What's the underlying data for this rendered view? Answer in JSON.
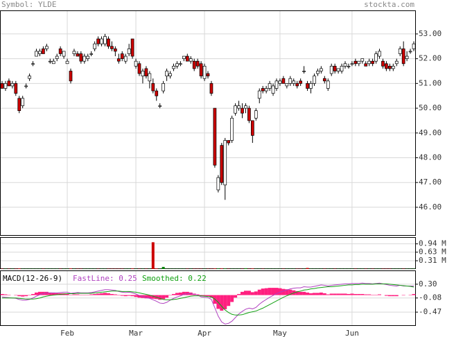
{
  "chart_data": [
    {
      "type": "candlestick",
      "title": "Symbol: YLDE",
      "source": "stockta.com",
      "categories": [
        null,
        null,
        null,
        null,
        null,
        null,
        null,
        null,
        null,
        null,
        null,
        null,
        null,
        null,
        null,
        null,
        null,
        null,
        null,
        "Feb",
        null,
        null,
        null,
        null,
        null,
        null,
        null,
        null,
        null,
        null,
        null,
        null,
        null,
        null,
        null,
        null,
        null,
        null,
        null,
        "Mar",
        null,
        null,
        null,
        null,
        null,
        null,
        null,
        null,
        null,
        null,
        null,
        null,
        null,
        null,
        null,
        null,
        null,
        null,
        null,
        "Apr",
        null,
        null,
        null,
        null,
        null,
        null,
        null,
        null,
        null,
        null,
        null,
        null,
        null,
        null,
        null,
        null,
        null,
        null,
        null,
        null,
        null,
        "May",
        null,
        null,
        null,
        null,
        null,
        null,
        null,
        null,
        null,
        null,
        null,
        null,
        null,
        null,
        null,
        null,
        null,
        null,
        null,
        null,
        "Jun",
        null,
        null,
        null,
        null,
        null,
        null,
        null,
        null,
        null,
        null,
        null,
        null,
        null,
        null,
        null,
        null,
        null,
        null
      ],
      "open": [
        51.0,
        50.8,
        51.1,
        50.9,
        51.0,
        50.4,
        50.1,
        50.9,
        51.2,
        51.8,
        52.1,
        52.2,
        52.4,
        52.4,
        51.9,
        51.8,
        52.0,
        52.4,
        52.1,
        51.8,
        51.5,
        52.2,
        52.2,
        52.2,
        51.9,
        52.0,
        52.2,
        52.4,
        52.8,
        52.6,
        52.6,
        52.8,
        52.5,
        52.4,
        52.0,
        52.2,
        51.9,
        52.2,
        52.8,
        51.7,
        51.8,
        51.3,
        51.6,
        51.1,
        51.0,
        50.7,
        50.1,
        50.7,
        51.3,
        51.3,
        51.6,
        51.7,
        51.8,
        52.0,
        52.1,
        51.9,
        51.9,
        51.9,
        51.8,
        51.2,
        51.4,
        51.0,
        50.0,
        46.7,
        48.5,
        46.9,
        48.7,
        48.7,
        49.8,
        50.0,
        50.0,
        50.0,
        50.0,
        49.5,
        49.6,
        50.4,
        50.8,
        50.7,
        50.8,
        50.6,
        50.8,
        51.0,
        51.2,
        50.9,
        51.0,
        51.0,
        51.0,
        51.1,
        51.5,
        51.0,
        50.8,
        51.0,
        51.4,
        51.5,
        51.2,
        50.8,
        51.4,
        51.7,
        51.5,
        51.5,
        51.7,
        51.7,
        51.8,
        51.9,
        51.8,
        51.9,
        51.8,
        51.8,
        51.9,
        51.9,
        52.1,
        51.9,
        51.8,
        51.7,
        51.6,
        51.8,
        52.2,
        52.4,
        52.0,
        52.3,
        52.4
      ],
      "high": [
        51.1,
        51.1,
        51.2,
        51.1,
        51.1,
        50.5,
        50.5,
        51.0,
        51.4,
        51.9,
        52.4,
        52.4,
        52.5,
        52.6,
        52.0,
        52.0,
        52.2,
        52.5,
        52.3,
        52.0,
        51.6,
        52.4,
        52.3,
        52.3,
        52.2,
        52.2,
        52.3,
        52.7,
        52.9,
        52.9,
        53.0,
        52.9,
        52.7,
        52.5,
        52.2,
        52.3,
        52.2,
        52.6,
        52.8,
        52.0,
        51.9,
        51.6,
        51.7,
        51.5,
        51.2,
        50.8,
        50.2,
        51.1,
        51.6,
        51.5,
        51.8,
        51.9,
        51.9,
        52.1,
        52.2,
        52.1,
        52.0,
        52.0,
        51.9,
        51.8,
        51.5,
        51.1,
        50.0,
        47.3,
        48.6,
        48.8,
        48.7,
        49.7,
        50.2,
        50.3,
        50.2,
        50.2,
        50.1,
        49.5,
        50.0,
        50.8,
        50.9,
        50.9,
        51.1,
        51.0,
        51.2,
        51.2,
        51.3,
        51.0,
        51.3,
        51.2,
        51.1,
        51.2,
        51.7,
        51.1,
        51.1,
        51.4,
        51.6,
        51.7,
        51.3,
        51.2,
        51.8,
        51.8,
        51.6,
        51.8,
        51.9,
        51.8,
        51.9,
        52.0,
        51.9,
        52.0,
        51.9,
        52.0,
        52.0,
        52.3,
        52.4,
        52.0,
        51.9,
        51.8,
        51.8,
        52.0,
        52.5,
        52.7,
        52.3,
        52.4,
        52.7
      ],
      "low": [
        50.8,
        50.7,
        50.9,
        50.8,
        50.5,
        49.8,
        50.0,
        50.8,
        51.1,
        51.7,
        52.1,
        52.1,
        52.2,
        52.3,
        51.8,
        51.8,
        51.9,
        52.1,
        52.0,
        51.8,
        51.0,
        52.1,
        52.1,
        51.8,
        51.8,
        51.9,
        52.1,
        52.3,
        52.5,
        52.5,
        52.5,
        52.4,
        52.3,
        52.1,
        51.8,
        51.9,
        51.8,
        52.1,
        52.0,
        51.6,
        51.3,
        51.0,
        51.2,
        50.8,
        50.6,
        50.3,
        50.0,
        50.6,
        51.1,
        51.2,
        51.5,
        51.6,
        51.7,
        51.9,
        51.9,
        51.8,
        51.5,
        51.6,
        51.2,
        51.1,
        51.2,
        50.5,
        47.6,
        46.6,
        46.9,
        46.3,
        48.5,
        48.6,
        49.7,
        49.9,
        49.6,
        49.8,
        49.4,
        48.6,
        49.5,
        50.2,
        50.6,
        50.6,
        50.7,
        50.5,
        50.7,
        50.9,
        51.0,
        50.8,
        50.9,
        50.9,
        50.8,
        50.9,
        51.4,
        50.7,
        50.6,
        50.9,
        51.3,
        51.4,
        51.0,
        50.7,
        51.3,
        51.4,
        51.4,
        51.4,
        51.6,
        51.6,
        51.7,
        51.7,
        51.7,
        51.8,
        51.7,
        51.7,
        51.7,
        51.8,
        52.0,
        51.6,
        51.5,
        51.5,
        51.5,
        51.7,
        52.1,
        51.7,
        51.9,
        52.2,
        52.3
      ],
      "close": [
        50.8,
        51.0,
        50.9,
        51.0,
        50.6,
        49.9,
        50.4,
        50.9,
        51.3,
        51.8,
        52.3,
        52.3,
        52.2,
        52.5,
        51.9,
        51.9,
        52.1,
        52.2,
        52.3,
        51.9,
        51.1,
        52.3,
        52.1,
        51.9,
        52.1,
        52.1,
        52.2,
        52.6,
        52.6,
        52.8,
        52.9,
        52.5,
        52.4,
        52.3,
        51.9,
        52.0,
        52.1,
        52.4,
        52.1,
        51.9,
        51.4,
        51.5,
        51.3,
        51.4,
        50.7,
        50.5,
        50.1,
        51.0,
        51.5,
        51.4,
        51.7,
        51.8,
        51.8,
        52.1,
        51.9,
        52.0,
        51.6,
        51.7,
        51.3,
        51.7,
        51.3,
        50.6,
        47.7,
        47.2,
        47.0,
        48.7,
        48.6,
        49.6,
        50.1,
        50.1,
        49.8,
        50.1,
        49.5,
        48.9,
        49.9,
        50.7,
        50.7,
        50.8,
        51.0,
        50.9,
        51.1,
        51.1,
        51.0,
        51.0,
        51.2,
        51.1,
        50.9,
        51.0,
        51.5,
        50.8,
        51.0,
        51.3,
        51.5,
        51.6,
        51.1,
        51.1,
        51.7,
        51.5,
        51.6,
        51.7,
        51.8,
        51.7,
        51.8,
        51.8,
        51.9,
        52.0,
        51.7,
        51.9,
        51.8,
        52.2,
        52.3,
        51.7,
        51.6,
        51.6,
        51.7,
        51.9,
        52.4,
        51.8,
        52.1,
        52.3,
        52.6
      ],
      "up_color": "#ffffff",
      "down_color": "#cc0000",
      "ylim": [
        44.85,
        53.95
      ],
      "yticks": [
        {
          "value": 46,
          "label": "46.00"
        },
        {
          "value": 47,
          "label": "47.00"
        },
        {
          "value": 48,
          "label": "48.00"
        },
        {
          "value": 49,
          "label": "49.00"
        },
        {
          "value": 50,
          "label": "50.00"
        },
        {
          "value": 51,
          "label": "51.00"
        },
        {
          "value": 52,
          "label": "52.00"
        },
        {
          "value": 53,
          "label": "53.00"
        }
      ],
      "grid": true
    },
    {
      "type": "volume",
      "values": [
        0.01,
        0.01,
        0.01,
        0.01,
        0.01,
        0.02,
        0.01,
        0.01,
        0.01,
        0.01,
        0.01,
        0.01,
        0.01,
        0.01,
        0.01,
        0.01,
        0.01,
        0.01,
        0.01,
        0.01,
        0.02,
        0.01,
        0.01,
        0.01,
        0.01,
        0.01,
        0.01,
        0.01,
        0.01,
        0.01,
        0.01,
        0.01,
        0.01,
        0.01,
        0.01,
        0.01,
        0.01,
        0.01,
        0.02,
        0.01,
        0.01,
        0.01,
        0.01,
        0.01,
        1.0,
        0.02,
        0.01,
        0.08,
        0.01,
        0.01,
        0.01,
        0.01,
        0.01,
        0.01,
        0.01,
        0.01,
        0.01,
        0.01,
        0.01,
        0.01,
        0.01,
        0.01,
        0.02,
        0.02,
        0.02,
        0.02,
        0.01,
        0.01,
        0.01,
        0.01,
        0.01,
        0.03,
        0.01,
        0.02,
        0.01,
        0.01,
        0.01,
        0.01,
        0.01,
        0.01,
        0.01,
        0.01,
        0.01,
        0.01,
        0.01,
        0.01,
        0.01,
        0.01,
        0.01,
        0.04,
        0.01,
        0.01,
        0.01,
        0.01,
        0.01,
        0.01,
        0.01,
        0.01,
        0.01,
        0.01,
        0.01,
        0.01,
        0.01,
        0.01,
        0.01,
        0.01,
        0.01,
        0.01,
        0.01,
        0.01,
        0.01,
        0.01,
        0.01,
        0.01,
        0.01,
        0.01,
        0.01,
        0.01,
        0.01,
        0.01,
        0.01
      ],
      "up_color": "#008000",
      "down_color": "#cc0000",
      "ylim": [
        0,
        1.19
      ],
      "yticks": [
        {
          "value": 0.31,
          "label": "0.31 M"
        },
        {
          "value": 0.63,
          "label": "0.63 M"
        },
        {
          "value": 0.94,
          "label": "0.94 M"
        }
      ]
    },
    {
      "type": "macd",
      "title": "MACD(12-26-9)",
      "histogram": [
        0.03,
        0.02,
        0.01,
        0.0,
        -0.01,
        -0.03,
        -0.04,
        -0.03,
        -0.01,
        0.03,
        0.07,
        0.09,
        0.09,
        0.09,
        0.07,
        0.06,
        0.05,
        0.05,
        0.05,
        0.04,
        0.01,
        0.02,
        0.02,
        0.01,
        0.01,
        0.01,
        0.02,
        0.03,
        0.04,
        0.05,
        0.06,
        0.05,
        0.03,
        0.02,
        -0.01,
        -0.02,
        -0.03,
        -0.02,
        -0.03,
        -0.05,
        -0.07,
        -0.08,
        -0.09,
        -0.09,
        -0.1,
        -0.11,
        -0.13,
        -0.11,
        -0.07,
        -0.01,
        0.03,
        0.06,
        0.07,
        0.09,
        0.09,
        0.07,
        0.04,
        0.02,
        -0.03,
        -0.03,
        -0.03,
        -0.07,
        -0.24,
        -0.38,
        -0.43,
        -0.39,
        -0.3,
        -0.19,
        -0.07,
        0.03,
        0.09,
        0.12,
        0.12,
        0.08,
        0.1,
        0.15,
        0.18,
        0.19,
        0.2,
        0.2,
        0.2,
        0.19,
        0.17,
        0.16,
        0.15,
        0.13,
        0.11,
        0.09,
        0.09,
        0.07,
        0.05,
        0.06,
        0.06,
        0.07,
        0.05,
        0.02,
        0.04,
        0.04,
        0.04,
        0.04,
        0.04,
        0.03,
        0.04,
        0.03,
        0.03,
        0.03,
        0.02,
        0.02,
        0.01,
        0.01,
        0.02,
        0.0,
        -0.02,
        -0.03,
        -0.03,
        -0.03,
        0.0,
        -0.01,
        0.0,
        0.01,
        0.03
      ],
      "histogram_color": "#ff1f7f",
      "series": [
        {
          "name": "FastLine: 0.25",
          "color": "#b040c0",
          "values": [
            -0.05,
            -0.06,
            -0.07,
            -0.08,
            -0.09,
            -0.12,
            -0.14,
            -0.14,
            -0.12,
            -0.08,
            -0.03,
            0.01,
            0.04,
            0.06,
            0.06,
            0.06,
            0.06,
            0.07,
            0.08,
            0.08,
            0.05,
            0.06,
            0.07,
            0.06,
            0.06,
            0.06,
            0.07,
            0.09,
            0.11,
            0.13,
            0.15,
            0.15,
            0.14,
            0.13,
            0.1,
            0.08,
            0.07,
            0.08,
            0.06,
            0.03,
            -0.01,
            -0.04,
            -0.07,
            -0.09,
            -0.13,
            -0.17,
            -0.22,
            -0.23,
            -0.2,
            -0.14,
            -0.09,
            -0.05,
            -0.02,
            0.02,
            0.04,
            0.04,
            0.02,
            0.0,
            -0.05,
            -0.06,
            -0.07,
            -0.12,
            -0.35,
            -0.58,
            -0.74,
            -0.8,
            -0.78,
            -0.72,
            -0.62,
            -0.52,
            -0.45,
            -0.39,
            -0.36,
            -0.38,
            -0.34,
            -0.25,
            -0.18,
            -0.12,
            -0.06,
            -0.01,
            0.04,
            0.08,
            0.11,
            0.14,
            0.17,
            0.19,
            0.2,
            0.2,
            0.23,
            0.22,
            0.22,
            0.24,
            0.26,
            0.28,
            0.27,
            0.25,
            0.27,
            0.28,
            0.29,
            0.3,
            0.31,
            0.31,
            0.32,
            0.32,
            0.32,
            0.33,
            0.32,
            0.32,
            0.31,
            0.32,
            0.33,
            0.31,
            0.29,
            0.27,
            0.26,
            0.25,
            0.27,
            0.25,
            0.25,
            0.25,
            0.25
          ]
        },
        {
          "name": "Smoothed: 0.22",
          "color": "#10a010",
          "values": [
            -0.08,
            -0.08,
            -0.08,
            -0.08,
            -0.08,
            -0.09,
            -0.1,
            -0.11,
            -0.11,
            -0.11,
            -0.1,
            -0.08,
            -0.05,
            -0.03,
            -0.01,
            0.0,
            0.01,
            0.02,
            0.03,
            0.04,
            0.04,
            0.04,
            0.05,
            0.05,
            0.05,
            0.05,
            0.05,
            0.06,
            0.07,
            0.08,
            0.09,
            0.1,
            0.11,
            0.11,
            0.11,
            0.1,
            0.1,
            0.1,
            0.09,
            0.08,
            0.06,
            0.04,
            0.02,
            0.0,
            -0.03,
            -0.06,
            -0.09,
            -0.12,
            -0.13,
            -0.13,
            -0.12,
            -0.11,
            -0.09,
            -0.07,
            -0.05,
            -0.03,
            -0.02,
            -0.02,
            -0.02,
            -0.03,
            -0.04,
            -0.05,
            -0.11,
            -0.2,
            -0.31,
            -0.41,
            -0.48,
            -0.53,
            -0.55,
            -0.55,
            -0.54,
            -0.51,
            -0.48,
            -0.46,
            -0.44,
            -0.4,
            -0.36,
            -0.31,
            -0.26,
            -0.21,
            -0.16,
            -0.11,
            -0.06,
            -0.02,
            0.02,
            0.06,
            0.09,
            0.11,
            0.14,
            0.15,
            0.17,
            0.18,
            0.2,
            0.21,
            0.22,
            0.23,
            0.23,
            0.24,
            0.25,
            0.26,
            0.27,
            0.28,
            0.28,
            0.29,
            0.29,
            0.3,
            0.3,
            0.3,
            0.3,
            0.31,
            0.31,
            0.31,
            0.31,
            0.3,
            0.29,
            0.28,
            0.27,
            0.26,
            0.25,
            0.24,
            0.22
          ]
        }
      ],
      "ylim": [
        -0.85,
        0.68
      ],
      "yticks": [
        -0.47,
        -0.08,
        {
          "value": 0.3,
          "label": "0.30"
        }
      ]
    }
  ]
}
